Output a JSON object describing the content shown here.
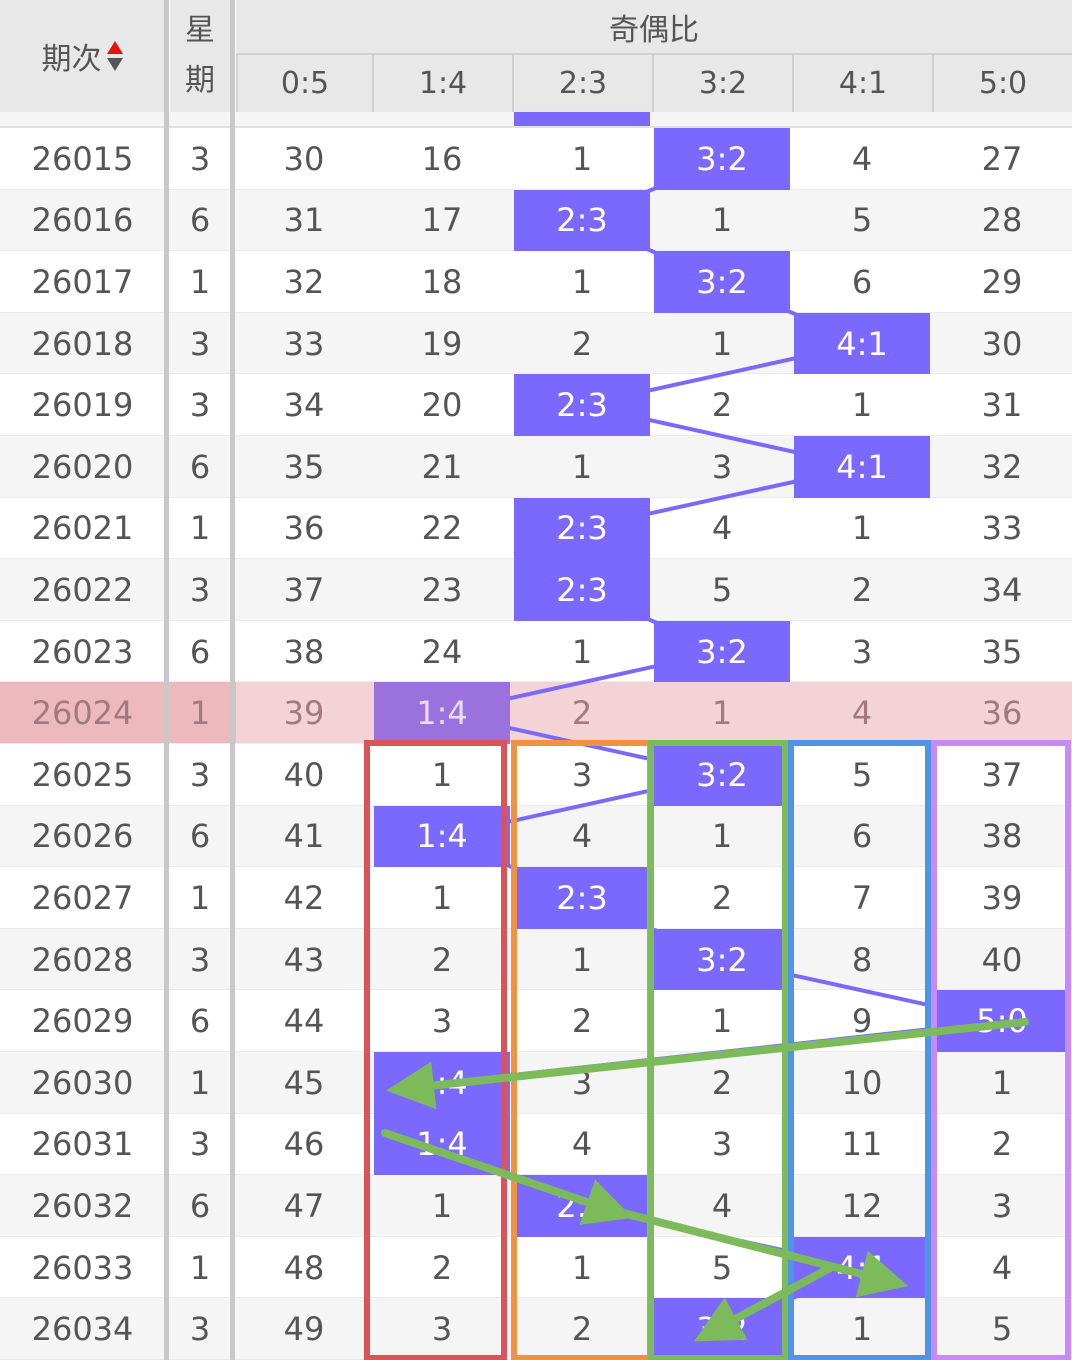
{
  "header": {
    "issue": "期次",
    "weekday_line1": "星",
    "weekday_line2": "期",
    "group": "奇偶比",
    "columns": [
      "0:5",
      "1:4",
      "2:3",
      "3:2",
      "4:1",
      "5:0"
    ],
    "sort_icon": "sort-up-down-icon",
    "sort_active_color": "#e81010"
  },
  "colors": {
    "hit": "#7b68ff",
    "highlight_row": "#f3d3d6",
    "highlight_hit": "#9b72dd",
    "annotation_arrow": "#7dbb5a",
    "box_colors": [
      "#d9545a",
      "#f0923e",
      "#7dbb5a",
      "#4f94e6",
      "#c98af5"
    ]
  },
  "highlighted_issue": "26024",
  "rows": [
    {
      "issue": "26015",
      "weekday": "3",
      "cells": [
        "30",
        "16",
        "1",
        "3:2",
        "4",
        "27"
      ],
      "hit": 3
    },
    {
      "issue": "26016",
      "weekday": "6",
      "cells": [
        "31",
        "17",
        "2:3",
        "1",
        "5",
        "28"
      ],
      "hit": 2
    },
    {
      "issue": "26017",
      "weekday": "1",
      "cells": [
        "32",
        "18",
        "1",
        "3:2",
        "6",
        "29"
      ],
      "hit": 3
    },
    {
      "issue": "26018",
      "weekday": "3",
      "cells": [
        "33",
        "19",
        "2",
        "1",
        "4:1",
        "30"
      ],
      "hit": 4
    },
    {
      "issue": "26019",
      "weekday": "3",
      "cells": [
        "34",
        "20",
        "2:3",
        "2",
        "1",
        "31"
      ],
      "hit": 2
    },
    {
      "issue": "26020",
      "weekday": "6",
      "cells": [
        "35",
        "21",
        "1",
        "3",
        "4:1",
        "32"
      ],
      "hit": 4
    },
    {
      "issue": "26021",
      "weekday": "1",
      "cells": [
        "36",
        "22",
        "2:3",
        "4",
        "1",
        "33"
      ],
      "hit": 2
    },
    {
      "issue": "26022",
      "weekday": "3",
      "cells": [
        "37",
        "23",
        "2:3",
        "5",
        "2",
        "34"
      ],
      "hit": 2
    },
    {
      "issue": "26023",
      "weekday": "6",
      "cells": [
        "38",
        "24",
        "1",
        "3:2",
        "3",
        "35"
      ],
      "hit": 3
    },
    {
      "issue": "26024",
      "weekday": "1",
      "cells": [
        "39",
        "1:4",
        "2",
        "1",
        "4",
        "36"
      ],
      "hit": 1
    },
    {
      "issue": "26025",
      "weekday": "3",
      "cells": [
        "40",
        "1",
        "3",
        "3:2",
        "5",
        "37"
      ],
      "hit": 3
    },
    {
      "issue": "26026",
      "weekday": "6",
      "cells": [
        "41",
        "1:4",
        "4",
        "1",
        "6",
        "38"
      ],
      "hit": 1
    },
    {
      "issue": "26027",
      "weekday": "1",
      "cells": [
        "42",
        "1",
        "2:3",
        "2",
        "7",
        "39"
      ],
      "hit": 2
    },
    {
      "issue": "26028",
      "weekday": "3",
      "cells": [
        "43",
        "2",
        "1",
        "3:2",
        "8",
        "40"
      ],
      "hit": 3
    },
    {
      "issue": "26029",
      "weekday": "6",
      "cells": [
        "44",
        "3",
        "2",
        "1",
        "9",
        "5:0"
      ],
      "hit": 5
    },
    {
      "issue": "26030",
      "weekday": "1",
      "cells": [
        "45",
        "1:4",
        "3",
        "2",
        "10",
        "1"
      ],
      "hit": 1
    },
    {
      "issue": "26031",
      "weekday": "3",
      "cells": [
        "46",
        "1:4",
        "4",
        "3",
        "11",
        "2"
      ],
      "hit": 1
    },
    {
      "issue": "26032",
      "weekday": "6",
      "cells": [
        "47",
        "1",
        "2:3",
        "4",
        "12",
        "3"
      ],
      "hit": 2
    },
    {
      "issue": "26033",
      "weekday": "1",
      "cells": [
        "48",
        "2",
        "1",
        "5",
        "4:1",
        "4"
      ],
      "hit": 4
    },
    {
      "issue": "26034",
      "weekday": "3",
      "cells": [
        "49",
        "3",
        "2",
        "3:2",
        "1",
        "5"
      ],
      "hit": 3
    }
  ]
}
